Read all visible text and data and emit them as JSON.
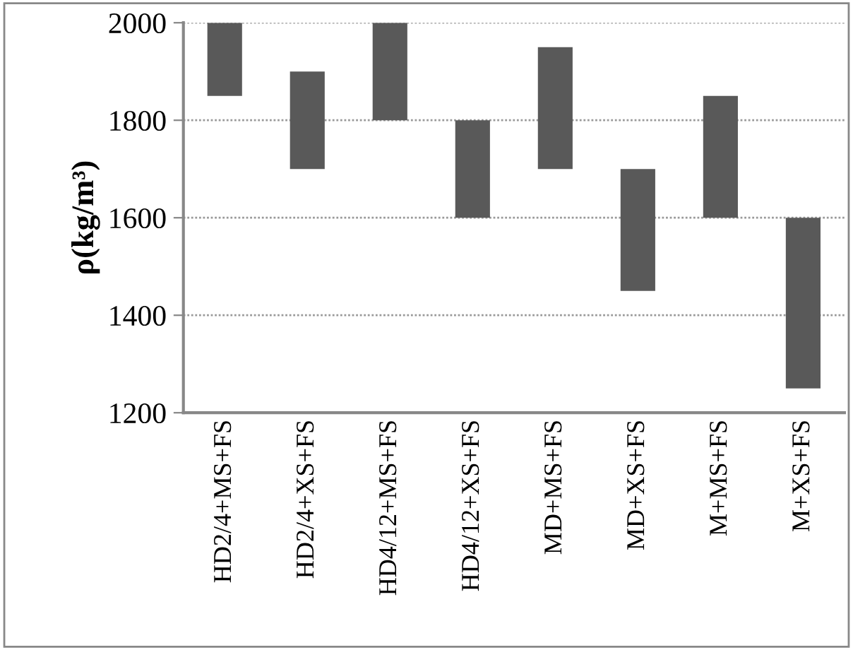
{
  "chart_data": {
    "type": "bar",
    "ylabel": "ρ(kg/m³)",
    "categories": [
      "HD2/4+MS+FS",
      "HD2/4+XS+FS",
      "HD4/12+MS+FS",
      "HD4/12+XS+FS",
      "MD+MS+FS",
      "MD+XS+FS",
      "M+MS+FS",
      "M+XS+FS"
    ],
    "base": [
      1850,
      1700,
      1800,
      1600,
      1700,
      1450,
      1600,
      1250
    ],
    "values": [
      150,
      200,
      200,
      200,
      250,
      250,
      250,
      350
    ],
    "color": "#595959",
    "ylim": [
      1200,
      2000
    ],
    "yticks": [
      1200,
      1400,
      1600,
      1800,
      2000
    ],
    "grid": "y"
  }
}
